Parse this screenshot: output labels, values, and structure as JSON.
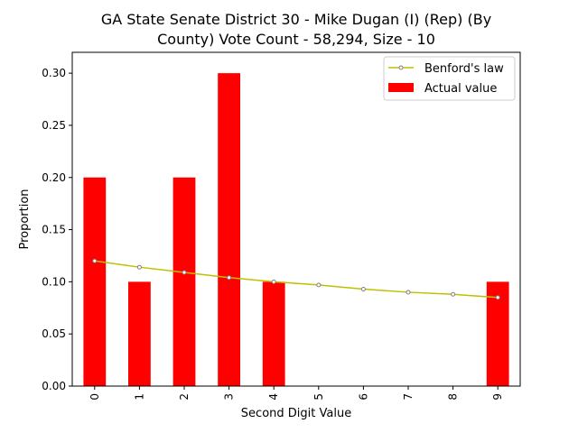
{
  "chart_data": {
    "type": "bar",
    "title_lines": [
      "GA State Senate District 30 - Mike Dugan (I) (Rep) (By",
      "County) Vote Count - 58,294, Size - 10"
    ],
    "xlabel": "Second Digit Value",
    "ylabel": "Proportion",
    "categories": [
      "0",
      "1",
      "2",
      "3",
      "4",
      "5",
      "6",
      "7",
      "8",
      "9"
    ],
    "ylim": [
      0,
      0.32
    ],
    "yticks": [
      0.0,
      0.05,
      0.1,
      0.15,
      0.2,
      0.25,
      0.3
    ],
    "ytick_labels": [
      "0.00",
      "0.05",
      "0.10",
      "0.15",
      "0.20",
      "0.25",
      "0.30"
    ],
    "grid": false,
    "legend_position": "top-right",
    "series": [
      {
        "name": "Actual value",
        "kind": "bar",
        "color": "#ff0000",
        "values": [
          0.2,
          0.1,
          0.2,
          0.3,
          0.1,
          0.0,
          0.0,
          0.0,
          0.0,
          0.1
        ]
      },
      {
        "name": "Benford's law",
        "kind": "line",
        "color": "#bfbf00",
        "marker_color": "#808080",
        "values": [
          0.12,
          0.114,
          0.109,
          0.104,
          0.1,
          0.097,
          0.093,
          0.09,
          0.088,
          0.085
        ]
      }
    ]
  }
}
